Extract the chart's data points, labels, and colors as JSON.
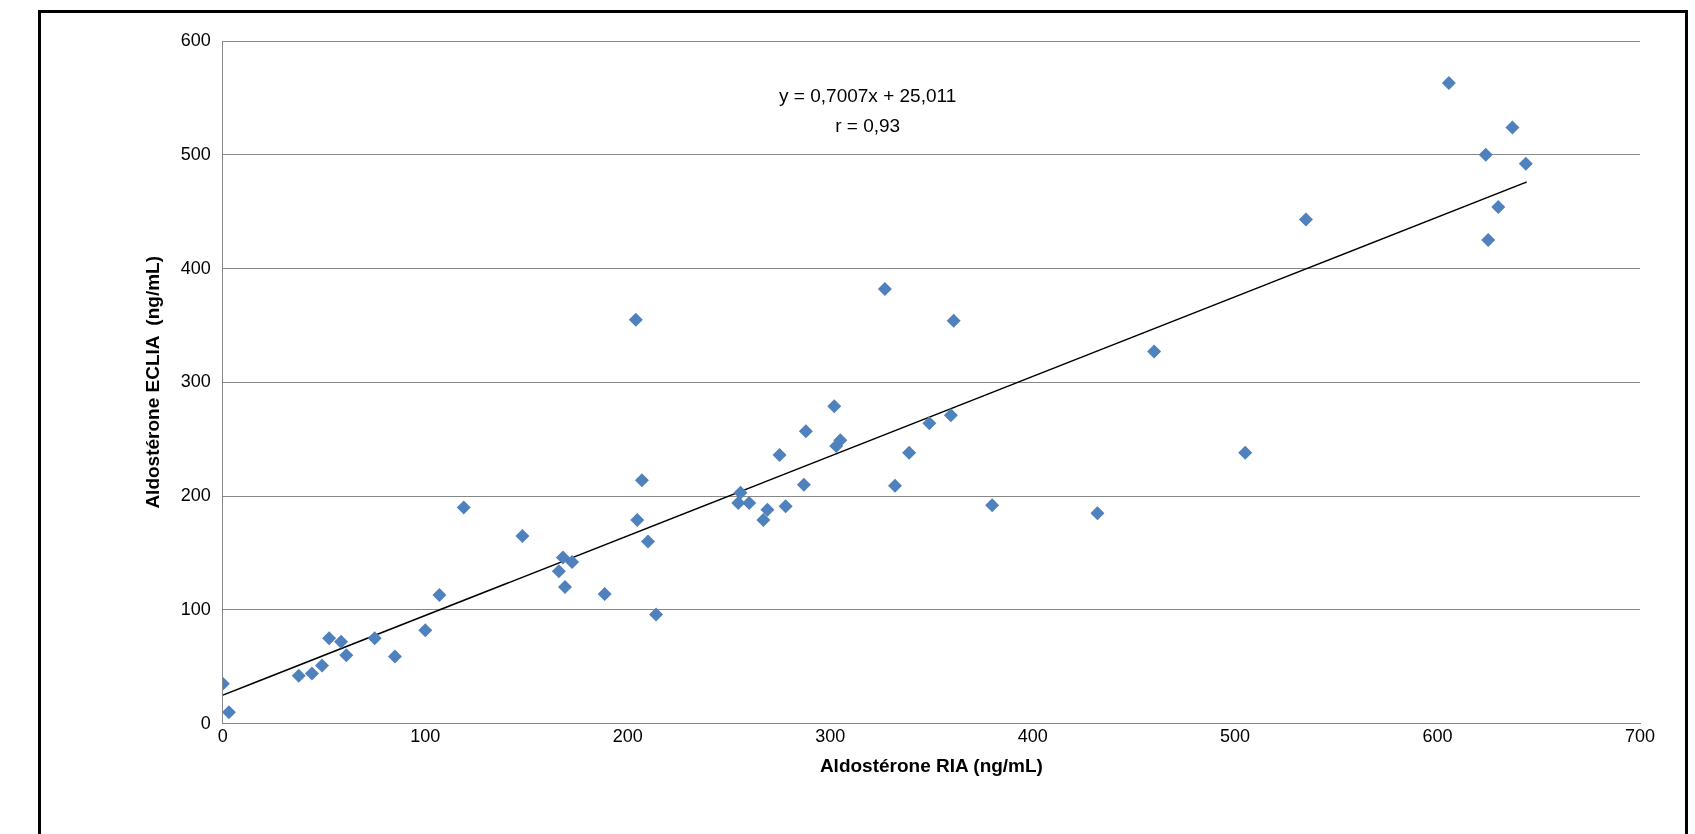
{
  "chart_data": {
    "type": "scatter",
    "xlabel": "Aldostérone RIA (ng/mL)",
    "ylabel": "Aldostérone ECLIA  (ng/mL)",
    "xlim": [
      0,
      700
    ],
    "xticks": [
      0,
      100,
      200,
      300,
      400,
      500,
      600,
      700
    ],
    "ylim": [
      0,
      600
    ],
    "yticks": [
      0,
      100,
      200,
      300,
      400,
      500,
      600
    ],
    "grid": "y",
    "marker": "diamond",
    "legend": false,
    "annotations": [
      "y = 0,7007x + 25,011",
      "r = 0,93"
    ],
    "series": [
      {
        "type": "scatter",
        "color": "#4f81bd",
        "x": [
          0,
          3,
          37.5,
          44,
          49,
          52.5,
          58.4,
          61,
          75,
          85,
          100,
          107,
          119,
          148,
          166,
          168,
          169,
          172.5,
          188.6,
          204,
          204.7,
          207,
          210,
          214,
          254.6,
          255.7,
          260,
          267,
          269,
          275,
          278,
          287,
          288,
          302,
          303,
          305,
          327,
          332,
          339,
          349,
          359.6,
          361,
          380,
          432,
          460,
          505,
          535,
          605.6,
          623.8,
          625,
          630,
          637,
          643.6
        ],
        "values": [
          35,
          10,
          42,
          44,
          51,
          75,
          72,
          60,
          75,
          59,
          82,
          113,
          190,
          165,
          134,
          146,
          120,
          142,
          114,
          355,
          179,
          214,
          160,
          96,
          194,
          203,
          194,
          179,
          188,
          236,
          191,
          210,
          257,
          279,
          244,
          249,
          382,
          209,
          238,
          264,
          271,
          354,
          192,
          185,
          327,
          238,
          443,
          563,
          500,
          425,
          454,
          524,
          492
        ]
      },
      {
        "type": "line",
        "color": "#000000",
        "x": [
          0,
          644
        ],
        "values": [
          25,
          476
        ],
        "marker": "none",
        "line_style": "solid"
      }
    ]
  }
}
